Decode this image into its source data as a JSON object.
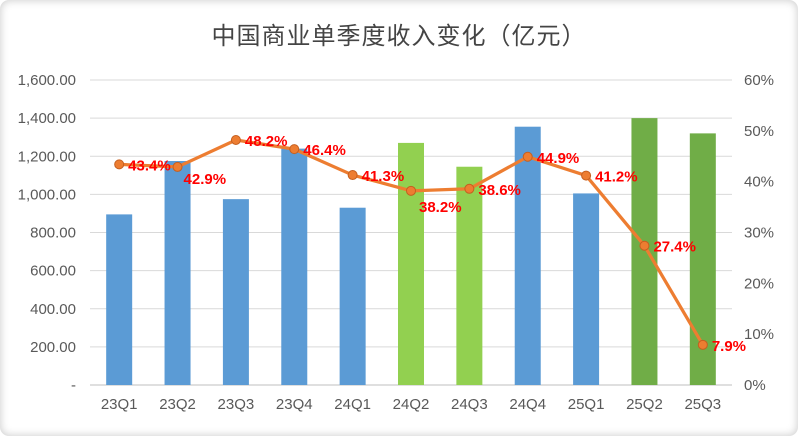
{
  "title": "中国商业单季度收入变化（亿元）",
  "chart_data": {
    "type": "bar",
    "subtype": "bar-line-combo",
    "title": "中国商业单季度收入变化（亿元）",
    "categories": [
      "23Q1",
      "23Q2",
      "23Q3",
      "23Q4",
      "24Q1",
      "24Q2",
      "24Q3",
      "24Q4",
      "25Q1",
      "25Q2",
      "25Q3"
    ],
    "series": [
      {
        "type": "bar",
        "axis": "left",
        "values": [
          895,
          1175,
          975,
          1240,
          930,
          1270,
          1145,
          1355,
          1005,
          1400,
          1320
        ],
        "colors": [
          "#5B9BD5",
          "#5B9BD5",
          "#5B9BD5",
          "#5B9BD5",
          "#5B9BD5",
          "#92D050",
          "#92D050",
          "#5B9BD5",
          "#5B9BD5",
          "#70AD47",
          "#70AD47"
        ]
      },
      {
        "type": "line",
        "axis": "right",
        "values": [
          43.4,
          42.9,
          48.2,
          46.4,
          41.3,
          38.2,
          38.6,
          44.9,
          41.2,
          27.4,
          7.9
        ],
        "labels": [
          "43.4%",
          "42.9%",
          "48.2%",
          "46.4%",
          "41.3%",
          "38.2%",
          "38.6%",
          "44.9%",
          "41.2%",
          "27.4%",
          "7.9%"
        ],
        "color": "#ED7D31",
        "marker_edge_color": "#C55F1F",
        "label_color": "#FF0000"
      }
    ],
    "left_axis": {
      "min": 0,
      "max": 1600,
      "step": 200,
      "tick_labels": [
        "-",
        "200.00",
        "400.00",
        "600.00",
        "800.00",
        "1,000.00",
        "1,200.00",
        "1,400.00",
        "1,600.00"
      ]
    },
    "right_axis": {
      "min": 0,
      "max": 60,
      "step": 10,
      "tick_labels": [
        "0%",
        "10%",
        "20%",
        "30%",
        "40%",
        "50%",
        "60%"
      ]
    },
    "grid": true,
    "gridline_color": "#D9D9D9",
    "axis_line_color": "#BFBFBF",
    "legend": "none"
  }
}
